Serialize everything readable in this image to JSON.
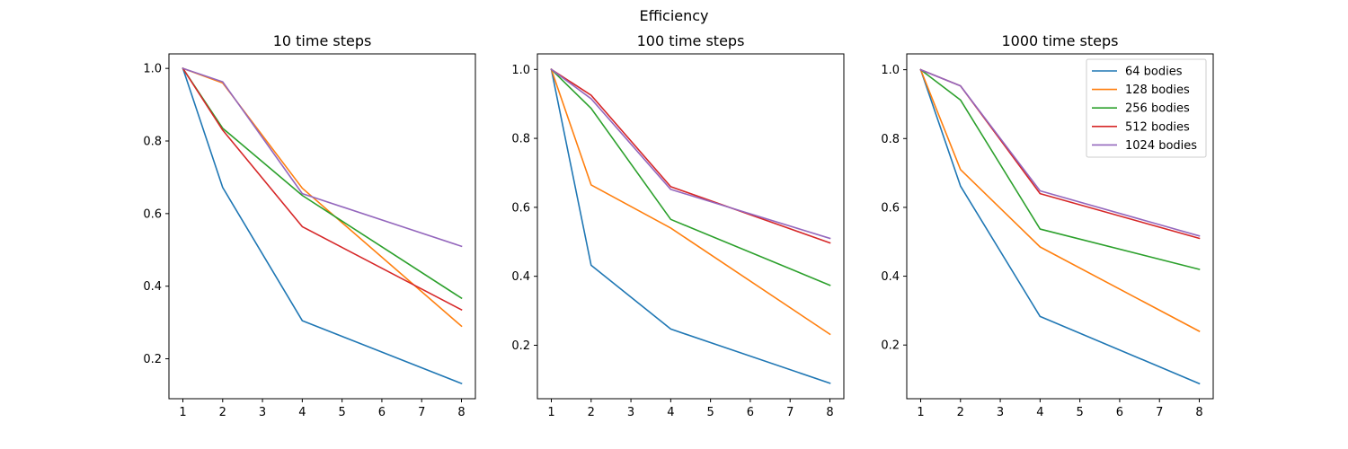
{
  "figure_title": "Efficiency",
  "series_colors": [
    "#1f77b4",
    "#ff7f0e",
    "#2ca02c",
    "#d62728",
    "#9467bd"
  ],
  "legend": {
    "location": "upper right (third panel)",
    "entries": [
      "64 bodies",
      "128 bodies",
      "256 bodies",
      "512 bodies",
      "1024 bodies"
    ]
  },
  "chart_data": [
    {
      "type": "line",
      "title": "10 time steps",
      "xlabel": "",
      "ylabel": "",
      "x": [
        1,
        2,
        4,
        8
      ],
      "x_ticks": [
        "1",
        "2",
        "3",
        "4",
        "5",
        "6",
        "7",
        "8"
      ],
      "y_ticks": [
        "0.2",
        "0.4",
        "0.6",
        "0.8",
        "1.0"
      ],
      "xlim": [
        0.65,
        8.35
      ],
      "ylim": [
        0.09,
        1.04
      ],
      "series": [
        {
          "name": "64 bodies",
          "values": [
            1.0,
            0.672,
            0.305,
            0.132
          ]
        },
        {
          "name": "128 bodies",
          "values": [
            1.0,
            0.96,
            0.67,
            0.29
          ]
        },
        {
          "name": "256 bodies",
          "values": [
            1.0,
            0.835,
            0.65,
            0.367
          ]
        },
        {
          "name": "512 bodies",
          "values": [
            1.0,
            0.83,
            0.564,
            0.335
          ]
        },
        {
          "name": "1024 bodies",
          "values": [
            1.0,
            0.963,
            0.655,
            0.51
          ]
        }
      ]
    },
    {
      "type": "line",
      "title": "100 time steps",
      "xlabel": "",
      "ylabel": "",
      "x": [
        1,
        2,
        4,
        8
      ],
      "x_ticks": [
        "1",
        "2",
        "3",
        "4",
        "5",
        "6",
        "7",
        "8"
      ],
      "y_ticks": [
        "0.2",
        "0.4",
        "0.6",
        "0.8",
        "1.0"
      ],
      "xlim": [
        0.65,
        8.35
      ],
      "ylim": [
        0.045,
        1.045
      ],
      "series": [
        {
          "name": "64 bodies",
          "values": [
            1.0,
            0.432,
            0.247,
            0.09
          ]
        },
        {
          "name": "128 bodies",
          "values": [
            1.0,
            0.665,
            0.54,
            0.232
          ]
        },
        {
          "name": "256 bodies",
          "values": [
            1.0,
            0.887,
            0.565,
            0.374
          ]
        },
        {
          "name": "512 bodies",
          "values": [
            1.0,
            0.925,
            0.66,
            0.497
          ]
        },
        {
          "name": "1024 bodies",
          "values": [
            1.0,
            0.915,
            0.652,
            0.51
          ]
        }
      ]
    },
    {
      "type": "line",
      "title": "1000 time steps",
      "xlabel": "",
      "ylabel": "",
      "x": [
        1,
        2,
        4,
        8
      ],
      "x_ticks": [
        "1",
        "2",
        "3",
        "4",
        "5",
        "6",
        "7",
        "8"
      ],
      "y_ticks": [
        "0.2",
        "0.4",
        "0.6",
        "0.8",
        "1.0"
      ],
      "xlim": [
        0.65,
        8.35
      ],
      "ylim": [
        0.044,
        1.046
      ],
      "series": [
        {
          "name": "64 bodies",
          "values": [
            1.0,
            0.662,
            0.283,
            0.088
          ]
        },
        {
          "name": "128 bodies",
          "values": [
            1.0,
            0.71,
            0.485,
            0.24
          ]
        },
        {
          "name": "256 bodies",
          "values": [
            1.0,
            0.912,
            0.537,
            0.42
          ]
        },
        {
          "name": "512 bodies",
          "values": [
            1.0,
            0.953,
            0.64,
            0.51
          ]
        },
        {
          "name": "1024 bodies",
          "values": [
            1.0,
            0.953,
            0.648,
            0.517
          ]
        }
      ]
    }
  ]
}
